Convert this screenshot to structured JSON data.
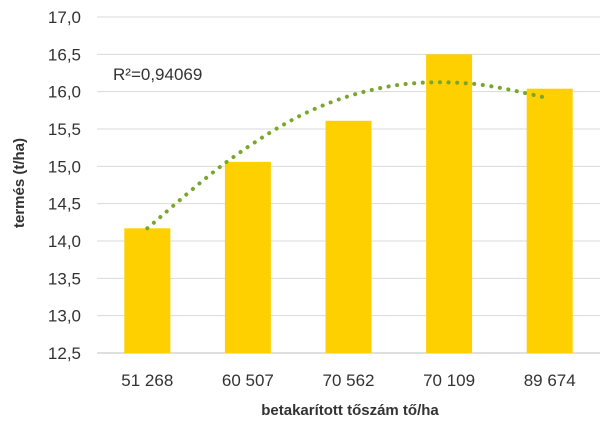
{
  "chart_data": {
    "type": "bar",
    "categories": [
      "51 268",
      "60 507",
      "70 562",
      "70 109",
      "89 674"
    ],
    "values": [
      14.17,
      15.06,
      15.61,
      16.5,
      16.04
    ],
    "xlabel": "betakarított tőszám tő/ha",
    "ylabel": "termés (t/ha)",
    "ylim": [
      12.5,
      17.0
    ],
    "ytick_step": 0.5,
    "ytick_labels": [
      "12,5",
      "13,0",
      "13,5",
      "14,0",
      "14,5",
      "15,0",
      "15,5",
      "16,0",
      "16,5",
      "17,0"
    ],
    "grid": true,
    "legend": "none",
    "trendline": {
      "type": "polynomial-2",
      "r2_label": "R²=0,94069",
      "values": [
        14.17,
        15.07,
        15.73,
        16.07,
        16.11,
        15.91
      ]
    },
    "colors": {
      "bar": "#FFD000",
      "trendline": "#7AA62C",
      "grid": "#D9D9D9",
      "axis": "#BFBFBF"
    }
  }
}
